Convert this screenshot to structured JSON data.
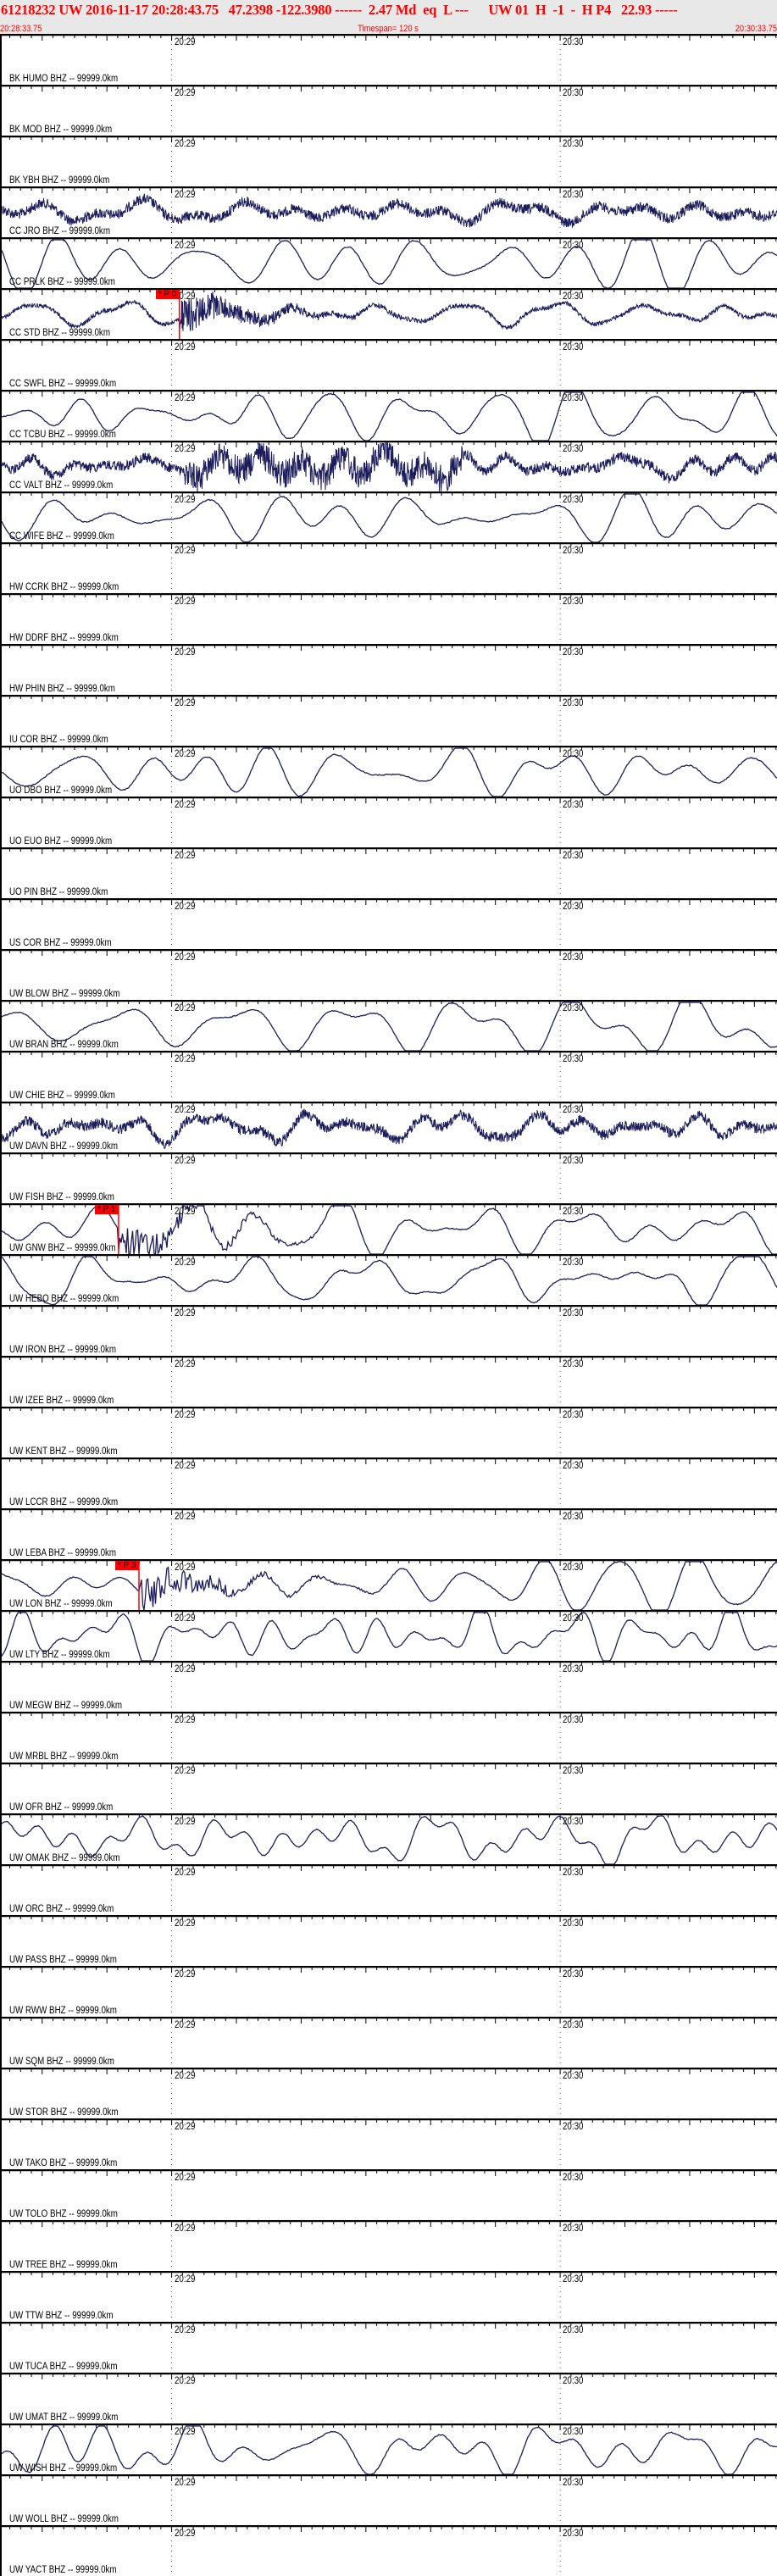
{
  "header": {
    "title": "61218232 UW 2016-11-17 20:28:43.75   47.2398 -122.3980 ------  2.47 Md  eq  L ---      UW 01  H  -1  -  H P4   22.93 -----",
    "start_time": "20:28:33.75",
    "timespan": "Timespan= 120 s",
    "end_time": "20:30:33.75"
  },
  "time_axis": {
    "start_seconds": 0,
    "span_seconds": 120,
    "major_ticks": [
      {
        "label": "20:29",
        "t": 26.25
      },
      {
        "label": "20:30",
        "t": 86.25
      }
    ]
  },
  "colors": {
    "trace": "#1c1c5c",
    "pick": "#ff0000",
    "header_text": "#ff0000",
    "header_bg": "#e8e8e8"
  },
  "stations": [
    {
      "label": "BK HUMO BHZ -- 99999.0km",
      "trace": "none"
    },
    {
      "label": "BK MOD BHZ -- 99999.0km",
      "trace": "none"
    },
    {
      "label": "BK YBH BHZ -- 99999.0km",
      "trace": "none"
    },
    {
      "label": "CC JRO BHZ -- 99999.0km",
      "trace": "heavy"
    },
    {
      "label": "CC PRLK BHZ -- 99999.0km",
      "trace": "smooth"
    },
    {
      "label": "CC STD BHZ -- 99999.0km",
      "trace": "noisy",
      "pick": {
        "label": "* P 0",
        "time": "20:29:01.2"
      }
    },
    {
      "label": "CC SWFL BHZ -- 99999.0km",
      "trace": "none"
    },
    {
      "label": "CC TCBU BHZ -- 99999.0km",
      "trace": "smooth"
    },
    {
      "label": "CC VALT BHZ -- 99999.0km",
      "trace": "heavy-burst"
    },
    {
      "label": "CC WIFE BHZ -- 99999.0km",
      "trace": "smooth"
    },
    {
      "label": "HW CCRK BHZ -- 99999.0km",
      "trace": "none"
    },
    {
      "label": "HW DDRF BHZ -- 99999.0km",
      "trace": "none"
    },
    {
      "label": "HW PHIN BHZ -- 99999.0km",
      "trace": "none"
    },
    {
      "label": "IU COR BHZ -- 99999.0km",
      "trace": "none"
    },
    {
      "label": "UO DBO BHZ -- 99999.0km",
      "trace": "smooth"
    },
    {
      "label": "UO EUO BHZ -- 99999.0km",
      "trace": "none"
    },
    {
      "label": "UO PIN BHZ -- 99999.0km",
      "trace": "none"
    },
    {
      "label": "US COR BHZ -- 99999.0km",
      "trace": "none"
    },
    {
      "label": "UW BLOW BHZ -- 99999.0km",
      "trace": "none"
    },
    {
      "label": "UW BRAN BHZ -- 99999.0km",
      "trace": "smooth"
    },
    {
      "label": "UW CHIE BHZ -- 99999.0km",
      "trace": "none"
    },
    {
      "label": "UW DAVN BHZ -- 99999.0km",
      "trace": "heavy"
    },
    {
      "label": "UW FISH BHZ -- 99999.0km",
      "trace": "none"
    },
    {
      "label": "UW GNW BHZ -- 99999.0km",
      "trace": "smooth",
      "pick": {
        "label": "* P 1",
        "time": "20:28:51.8"
      }
    },
    {
      "label": "UW HEBO BHZ -- 99999.0km",
      "trace": "smooth"
    },
    {
      "label": "UW IRON BHZ -- 99999.0km",
      "trace": "none"
    },
    {
      "label": "UW IZEE BHZ -- 99999.0km",
      "trace": "none"
    },
    {
      "label": "UW KENT BHZ -- 99999.0km",
      "trace": "none"
    },
    {
      "label": "UW LCCR BHZ -- 99999.0km",
      "trace": "none"
    },
    {
      "label": "UW LEBA BHZ -- 99999.0km",
      "trace": "none"
    },
    {
      "label": "UW LON BHZ -- 99999.0km",
      "trace": "smooth",
      "pick": {
        "label": "* P 3",
        "time": "20:28:54.95"
      }
    },
    {
      "label": "UW LTY BHZ -- 99999.0km",
      "trace": "smooth"
    },
    {
      "label": "UW MEGW BHZ -- 99999.0km",
      "trace": "none"
    },
    {
      "label": "UW MRBL BHZ -- 99999.0km",
      "trace": "none"
    },
    {
      "label": "UW OFR BHZ -- 99999.0km",
      "trace": "none"
    },
    {
      "label": "UW OMAK BHZ -- 99999.0km",
      "trace": "smooth"
    },
    {
      "label": "UW ORC BHZ -- 99999.0km",
      "trace": "none"
    },
    {
      "label": "UW PASS BHZ -- 99999.0km",
      "trace": "none"
    },
    {
      "label": "UW RWW BHZ -- 99999.0km",
      "trace": "none"
    },
    {
      "label": "UW SQM BHZ -- 99999.0km",
      "trace": "none"
    },
    {
      "label": "UW STOR BHZ -- 99999.0km",
      "trace": "none"
    },
    {
      "label": "UW TAKO BHZ -- 99999.0km",
      "trace": "none"
    },
    {
      "label": "UW TOLO BHZ -- 99999.0km",
      "trace": "none"
    },
    {
      "label": "UW TREE BHZ -- 99999.0km",
      "trace": "none"
    },
    {
      "label": "UW TTW BHZ -- 99999.0km",
      "trace": "none"
    },
    {
      "label": "UW TUCA BHZ -- 99999.0km",
      "trace": "none"
    },
    {
      "label": "UW UMAT BHZ -- 99999.0km",
      "trace": "none"
    },
    {
      "label": "UW WISH BHZ -- 99999.0km",
      "trace": "smooth"
    },
    {
      "label": "UW WOLL BHZ -- 99999.0km",
      "trace": "none"
    },
    {
      "label": "UW YACT BHZ -- 99999.0km",
      "trace": "none"
    }
  ]
}
